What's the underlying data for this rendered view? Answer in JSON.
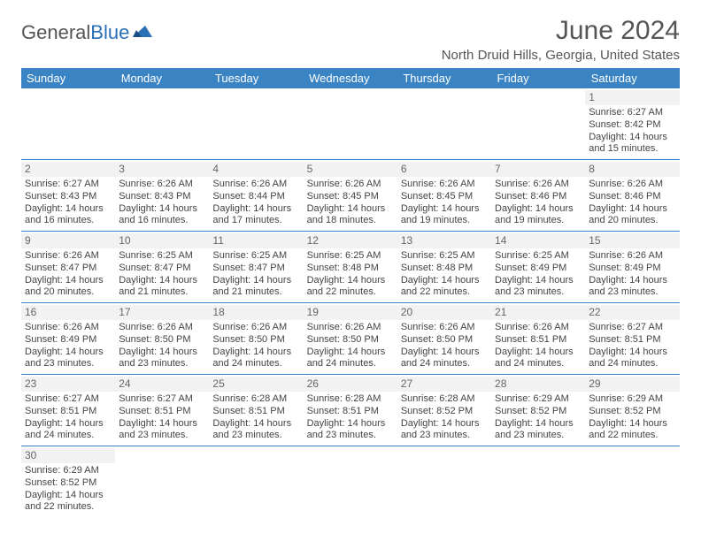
{
  "logo": {
    "general": "General",
    "blue": "Blue"
  },
  "title": "June 2024",
  "location": "North Druid Hills, Georgia, United States",
  "colors": {
    "header_bg": "#3b84c4",
    "header_text": "#ffffff",
    "border": "#3b84c4",
    "daynum_bg": "#f2f2f2",
    "text": "#444444"
  },
  "weekdays": [
    "Sunday",
    "Monday",
    "Tuesday",
    "Wednesday",
    "Thursday",
    "Friday",
    "Saturday"
  ],
  "first_weekday_index": 6,
  "days": [
    {
      "n": 1,
      "sr": "6:27 AM",
      "ss": "8:42 PM",
      "dl": "14 hours and 15 minutes."
    },
    {
      "n": 2,
      "sr": "6:27 AM",
      "ss": "8:43 PM",
      "dl": "14 hours and 16 minutes."
    },
    {
      "n": 3,
      "sr": "6:26 AM",
      "ss": "8:43 PM",
      "dl": "14 hours and 16 minutes."
    },
    {
      "n": 4,
      "sr": "6:26 AM",
      "ss": "8:44 PM",
      "dl": "14 hours and 17 minutes."
    },
    {
      "n": 5,
      "sr": "6:26 AM",
      "ss": "8:45 PM",
      "dl": "14 hours and 18 minutes."
    },
    {
      "n": 6,
      "sr": "6:26 AM",
      "ss": "8:45 PM",
      "dl": "14 hours and 19 minutes."
    },
    {
      "n": 7,
      "sr": "6:26 AM",
      "ss": "8:46 PM",
      "dl": "14 hours and 19 minutes."
    },
    {
      "n": 8,
      "sr": "6:26 AM",
      "ss": "8:46 PM",
      "dl": "14 hours and 20 minutes."
    },
    {
      "n": 9,
      "sr": "6:26 AM",
      "ss": "8:47 PM",
      "dl": "14 hours and 20 minutes."
    },
    {
      "n": 10,
      "sr": "6:25 AM",
      "ss": "8:47 PM",
      "dl": "14 hours and 21 minutes."
    },
    {
      "n": 11,
      "sr": "6:25 AM",
      "ss": "8:47 PM",
      "dl": "14 hours and 21 minutes."
    },
    {
      "n": 12,
      "sr": "6:25 AM",
      "ss": "8:48 PM",
      "dl": "14 hours and 22 minutes."
    },
    {
      "n": 13,
      "sr": "6:25 AM",
      "ss": "8:48 PM",
      "dl": "14 hours and 22 minutes."
    },
    {
      "n": 14,
      "sr": "6:25 AM",
      "ss": "8:49 PM",
      "dl": "14 hours and 23 minutes."
    },
    {
      "n": 15,
      "sr": "6:26 AM",
      "ss": "8:49 PM",
      "dl": "14 hours and 23 minutes."
    },
    {
      "n": 16,
      "sr": "6:26 AM",
      "ss": "8:49 PM",
      "dl": "14 hours and 23 minutes."
    },
    {
      "n": 17,
      "sr": "6:26 AM",
      "ss": "8:50 PM",
      "dl": "14 hours and 23 minutes."
    },
    {
      "n": 18,
      "sr": "6:26 AM",
      "ss": "8:50 PM",
      "dl": "14 hours and 24 minutes."
    },
    {
      "n": 19,
      "sr": "6:26 AM",
      "ss": "8:50 PM",
      "dl": "14 hours and 24 minutes."
    },
    {
      "n": 20,
      "sr": "6:26 AM",
      "ss": "8:50 PM",
      "dl": "14 hours and 24 minutes."
    },
    {
      "n": 21,
      "sr": "6:26 AM",
      "ss": "8:51 PM",
      "dl": "14 hours and 24 minutes."
    },
    {
      "n": 22,
      "sr": "6:27 AM",
      "ss": "8:51 PM",
      "dl": "14 hours and 24 minutes."
    },
    {
      "n": 23,
      "sr": "6:27 AM",
      "ss": "8:51 PM",
      "dl": "14 hours and 24 minutes."
    },
    {
      "n": 24,
      "sr": "6:27 AM",
      "ss": "8:51 PM",
      "dl": "14 hours and 23 minutes."
    },
    {
      "n": 25,
      "sr": "6:28 AM",
      "ss": "8:51 PM",
      "dl": "14 hours and 23 minutes."
    },
    {
      "n": 26,
      "sr": "6:28 AM",
      "ss": "8:51 PM",
      "dl": "14 hours and 23 minutes."
    },
    {
      "n": 27,
      "sr": "6:28 AM",
      "ss": "8:52 PM",
      "dl": "14 hours and 23 minutes."
    },
    {
      "n": 28,
      "sr": "6:29 AM",
      "ss": "8:52 PM",
      "dl": "14 hours and 23 minutes."
    },
    {
      "n": 29,
      "sr": "6:29 AM",
      "ss": "8:52 PM",
      "dl": "14 hours and 22 minutes."
    },
    {
      "n": 30,
      "sr": "6:29 AM",
      "ss": "8:52 PM",
      "dl": "14 hours and 22 minutes."
    }
  ],
  "labels": {
    "sunrise": "Sunrise:",
    "sunset": "Sunset:",
    "daylight": "Daylight:"
  }
}
